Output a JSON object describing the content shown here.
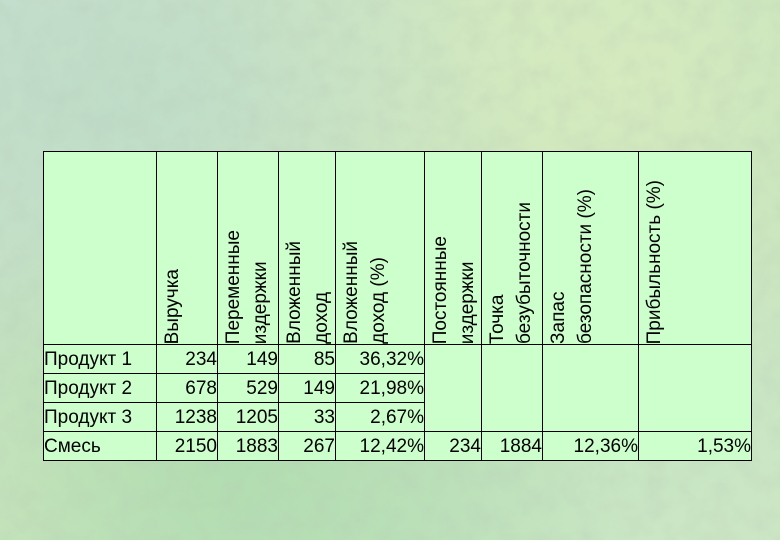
{
  "table": {
    "headers": [
      "",
      "Выручка",
      "Переменные\nиздержки",
      "Вложенный\nдоход",
      "Вложенный\nдоход (%)",
      "Постоянные\nиздержки",
      "Точка\nбезубыточности",
      "Запас\nбезопасности (%)",
      "Прибыльность (%)"
    ],
    "rows": [
      {
        "label": "Продукт 1",
        "revenue": "234",
        "variable_costs": "149",
        "contribution": "85",
        "contribution_pct": "36,32%"
      },
      {
        "label": "Продукт 2",
        "revenue": "678",
        "variable_costs": "529",
        "contribution": "149",
        "contribution_pct": "21,98%"
      },
      {
        "label": "Продукт 3",
        "revenue": "1238",
        "variable_costs": "1205",
        "contribution": "33",
        "contribution_pct": "2,67%"
      }
    ],
    "total": {
      "label": "Смесь",
      "revenue": "2150",
      "variable_costs": "1883",
      "contribution": "267",
      "contribution_pct": "12,42%",
      "fixed_costs": "234",
      "break_even": "1884",
      "safety_margin_pct": "12,36%",
      "profitability_pct": "1,53%"
    }
  },
  "colors": {
    "table_fill": "#ccffcc",
    "border": "#000000"
  }
}
